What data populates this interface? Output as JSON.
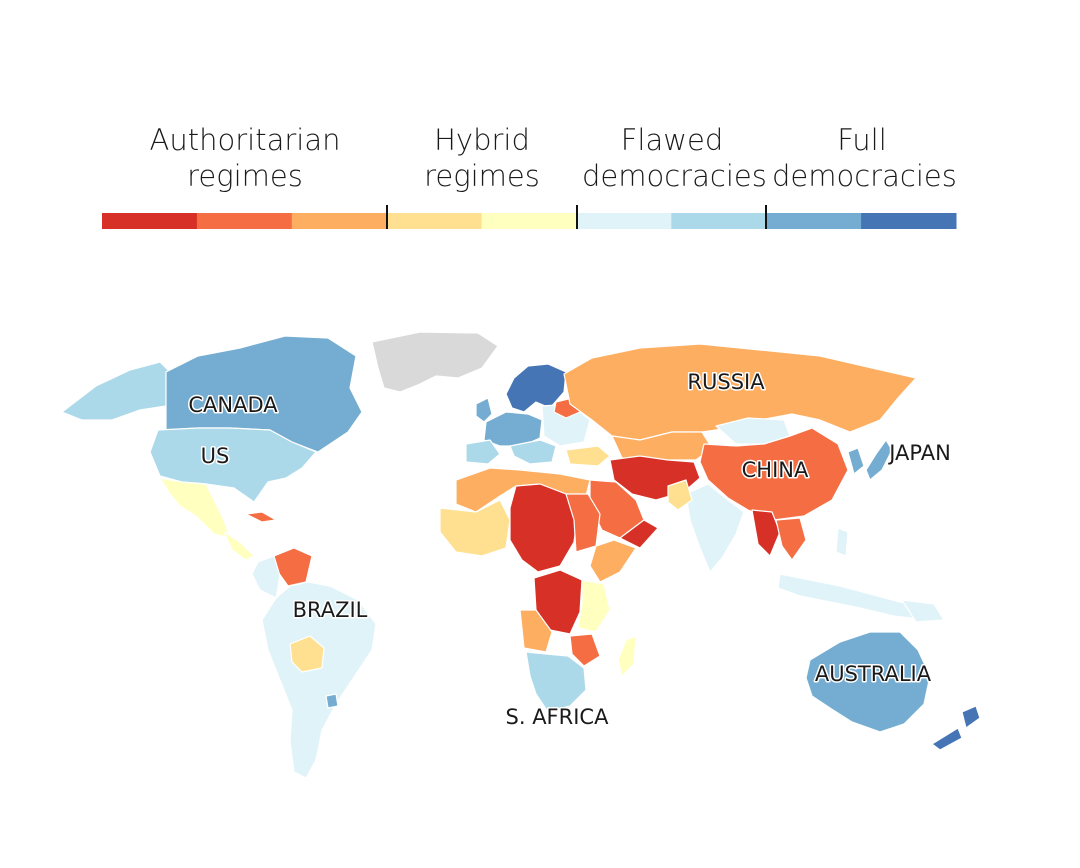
{
  "legend": {
    "categories": [
      {
        "line1": "Authoritarian",
        "line2": "regimes"
      },
      {
        "line1": "Hybrid",
        "line2": "regimes"
      },
      {
        "line1": "Flawed",
        "line2": "democracies"
      },
      {
        "line1": "Full",
        "line2": "democracies"
      }
    ],
    "scale_colors": [
      "#d73027",
      "#f46d43",
      "#fdae61",
      "#fee090",
      "#ffffbf",
      "#e0f3f8",
      "#abd9e9",
      "#74add1",
      "#4575b4"
    ]
  },
  "map_labels": {
    "canada": "CANADA",
    "us": "US",
    "brazil": "BRAZIL",
    "russia": "RUSSIA",
    "china": "CHINA",
    "japan": "JAPAN",
    "south_africa": "S. AFRICA",
    "australia": "AUSTRALIA"
  },
  "colors": {
    "authoritarian_dark": "#d73027",
    "authoritarian": "#f46d43",
    "authoritarian_light": "#fdae61",
    "hybrid_dark": "#fee090",
    "hybrid_light": "#ffffbf",
    "flawed_light": "#e0f3f8",
    "flawed": "#abd9e9",
    "full_light": "#74add1",
    "full": "#4575b4",
    "no_data": "#d9d9d9"
  }
}
